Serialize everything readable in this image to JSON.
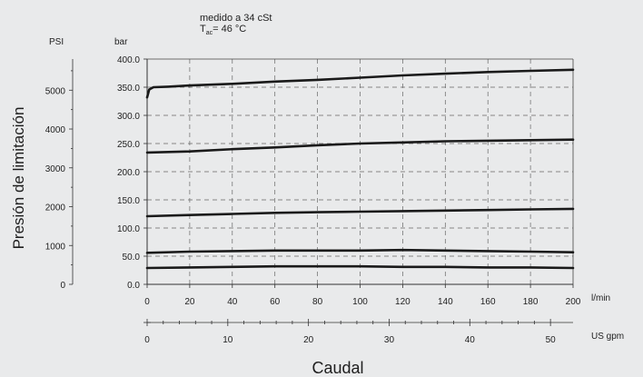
{
  "chart_data": {
    "type": "line",
    "annotation": {
      "line1": "medido a 34 cSt",
      "t_main": "T",
      "t_sub": "ac",
      "t_rest": "= 46 °C"
    },
    "ylabel": "Presión de limitación",
    "xlabel": "Caudal",
    "left_unit": "PSI",
    "right_unit": "bar",
    "x_unit_primary": "l/min",
    "x_unit_secondary": "US gpm",
    "psi_ticks": [
      "0",
      "1000",
      "2000",
      "3000",
      "4000",
      "5000"
    ],
    "bar_ticks": [
      "0.0",
      "50.0",
      "100.0",
      "150.0",
      "200.0",
      "250.0",
      "300.0",
      "350.0",
      "400.0"
    ],
    "lmin_ticks": [
      "0",
      "20",
      "40",
      "60",
      "80",
      "100",
      "120",
      "140",
      "160",
      "180",
      "200"
    ],
    "gpm_ticks": [
      "0",
      "10",
      "20",
      "30",
      "40",
      "50"
    ],
    "xlim": [
      0,
      200
    ],
    "ylim": [
      0,
      400
    ],
    "psi_lim": [
      0,
      5802
    ],
    "gpm_lim": [
      0,
      52.8
    ],
    "grid": true,
    "series": [
      {
        "x": [
          0,
          1,
          3,
          10,
          20,
          40,
          60,
          80,
          100,
          120,
          140,
          160,
          180,
          200
        ],
        "values": [
          332,
          346,
          350,
          351,
          353,
          356,
          360,
          363,
          367,
          371,
          374,
          377,
          379,
          381
        ]
      },
      {
        "x": [
          0,
          20,
          40,
          60,
          80,
          100,
          120,
          140,
          160,
          180,
          200
        ],
        "values": [
          234,
          236,
          240,
          243,
          247,
          250,
          252,
          254,
          255,
          256,
          257
        ]
      },
      {
        "x": [
          0,
          20,
          40,
          60,
          80,
          100,
          120,
          140,
          160,
          180,
          200
        ],
        "values": [
          121,
          123,
          125,
          127,
          128,
          129,
          130,
          131,
          132,
          133,
          134
        ]
      },
      {
        "x": [
          0,
          20,
          40,
          60,
          80,
          100,
          120,
          140,
          160,
          180,
          200
        ],
        "values": [
          56,
          58,
          59,
          60,
          60,
          60,
          61,
          60,
          59,
          58,
          57
        ]
      },
      {
        "x": [
          0,
          20,
          40,
          60,
          80,
          100,
          120,
          140,
          160,
          180,
          200
        ],
        "values": [
          29,
          30,
          31,
          32,
          32,
          32,
          31,
          31,
          30,
          30,
          29
        ]
      }
    ]
  }
}
